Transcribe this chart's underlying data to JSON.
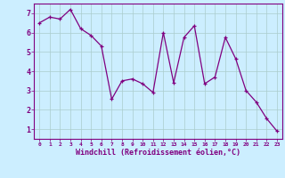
{
  "x": [
    0,
    1,
    2,
    3,
    4,
    5,
    6,
    7,
    8,
    9,
    10,
    11,
    12,
    13,
    14,
    15,
    16,
    17,
    18,
    19,
    20,
    21,
    22,
    23
  ],
  "y": [
    6.5,
    6.8,
    6.7,
    7.2,
    6.2,
    5.85,
    5.3,
    2.55,
    3.5,
    3.6,
    3.35,
    2.9,
    6.0,
    3.4,
    5.75,
    6.35,
    3.35,
    3.7,
    5.75,
    4.65,
    3.0,
    2.4,
    1.55,
    0.9
  ],
  "line_color": "#800080",
  "marker_color": "#800080",
  "bg_color": "#cceeff",
  "grid_color": "#aacccc",
  "xlabel": "Windchill (Refroidissement éolien,°C)",
  "ylabel_ticks": [
    1,
    2,
    3,
    4,
    5,
    6,
    7
  ],
  "xlim": [
    -0.5,
    23.5
  ],
  "ylim": [
    0.5,
    7.5
  ],
  "xtick_labels": [
    "0",
    "1",
    "2",
    "3",
    "4",
    "5",
    "6",
    "7",
    "8",
    "9",
    "10",
    "11",
    "12",
    "13",
    "14",
    "15",
    "16",
    "17",
    "18",
    "19",
    "20",
    "21",
    "22",
    "23"
  ],
  "axis_label_color": "#800080",
  "tick_label_color": "#800080",
  "xtick_fontsize": 4.5,
  "ytick_fontsize": 6,
  "xlabel_fontsize": 6
}
